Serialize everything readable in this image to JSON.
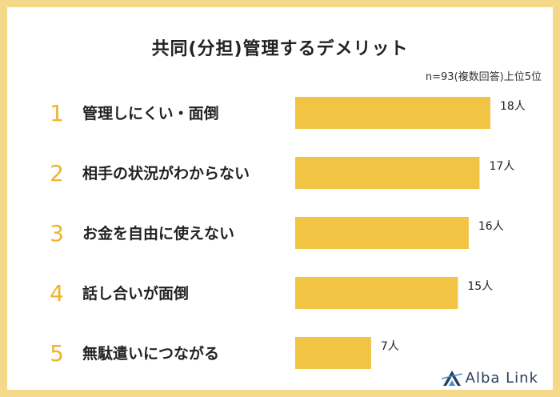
{
  "chart_data": {
    "type": "bar",
    "orientation": "horizontal",
    "title": "共同(分担)管理するデメリット",
    "note": "n=93(複数回答)上位5位",
    "ranks": [
      "1",
      "2",
      "3",
      "4",
      "5"
    ],
    "categories": [
      "管理しにくい・面倒",
      "相手の状況がわからない",
      "お金を自由に使えない",
      "話し合いが面倒",
      "無駄遣いにつながる"
    ],
    "values": [
      18,
      17,
      16,
      15,
      7
    ],
    "value_labels": [
      "18人",
      "17人",
      "16人",
      "15人",
      "7人"
    ],
    "unit": "人",
    "xlim": [
      0,
      18
    ],
    "grid": false,
    "legend": "none"
  },
  "colors": {
    "bar": "#f2c444",
    "rank": "#f0b429",
    "border": "#f5d98a",
    "logo": "#2b3f5c",
    "logo_accent": "#3a8fd9"
  },
  "logo": {
    "text": "Alba Link",
    "icon": "alba-link-logo-icon"
  }
}
